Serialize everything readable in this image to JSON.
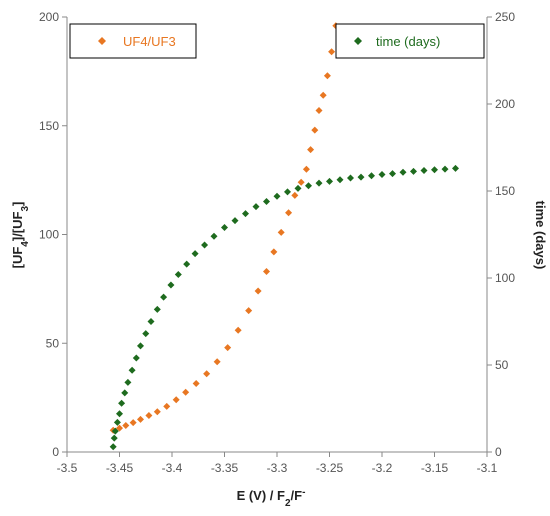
{
  "chart_data": {
    "type": "scatter",
    "title": "",
    "xlabel": "E (V) / F2/F-",
    "ylabel_left": "[UF4]/[UF3]",
    "ylabel_right": "time (days)",
    "xlim": [
      -3.5,
      -3.1
    ],
    "ylim_left": [
      0,
      200
    ],
    "ylim_right": [
      0,
      250
    ],
    "grid": false,
    "x_ticks": [
      "-3.5",
      "-3.45",
      "-3.4",
      "-3.35",
      "-3.3",
      "-3.25",
      "-3.2",
      "-3.15",
      "-3.1"
    ],
    "y_left_ticks": [
      "0",
      "50",
      "100",
      "150",
      "200"
    ],
    "y_right_ticks": [
      "0",
      "50",
      "100",
      "150",
      "200",
      "250"
    ],
    "series": [
      {
        "name": "UF4/UF3",
        "axis": "left",
        "color": "#E87722",
        "marker": "diamond",
        "legend_position": "top-left",
        "x": [
          -3.456,
          -3.45,
          -3.444,
          -3.437,
          -3.43,
          -3.422,
          -3.414,
          -3.405,
          -3.396,
          -3.387,
          -3.377,
          -3.367,
          -3.357,
          -3.347,
          -3.337,
          -3.327,
          -3.318,
          -3.31,
          -3.303,
          -3.296,
          -3.289,
          -3.283,
          -3.277,
          -3.272,
          -3.268,
          -3.264,
          -3.26,
          -3.256,
          -3.252,
          -3.248,
          -3.244
        ],
        "y": [
          10,
          11,
          12.2,
          13.5,
          15,
          16.8,
          18.5,
          21,
          24,
          27.5,
          31.5,
          36,
          41.5,
          48,
          56,
          65,
          74,
          83,
          92,
          101,
          110,
          118,
          124,
          130,
          139,
          148,
          157,
          164,
          173,
          184,
          196
        ]
      },
      {
        "name": "time (days)",
        "axis": "right",
        "color": "#1E6B1E",
        "marker": "diamond",
        "legend_position": "top-right",
        "x": [
          -3.456,
          -3.455,
          -3.454,
          -3.452,
          -3.45,
          -3.448,
          -3.445,
          -3.442,
          -3.438,
          -3.434,
          -3.43,
          -3.425,
          -3.42,
          -3.414,
          -3.408,
          -3.401,
          -3.394,
          -3.386,
          -3.378,
          -3.369,
          -3.36,
          -3.35,
          -3.34,
          -3.33,
          -3.32,
          -3.31,
          -3.3,
          -3.29,
          -3.28,
          -3.27,
          -3.26,
          -3.25,
          -3.24,
          -3.23,
          -3.22,
          -3.21,
          -3.2,
          -3.19,
          -3.18,
          -3.17,
          -3.16,
          -3.15,
          -3.14,
          -3.13
        ],
        "y": [
          3,
          8,
          12,
          17,
          22,
          28,
          34,
          40,
          47,
          54,
          61,
          68,
          75,
          82,
          89,
          96,
          102,
          108,
          114,
          119,
          124,
          129,
          133,
          137,
          141,
          144,
          147,
          149.5,
          151.5,
          153,
          154.5,
          155.5,
          156.5,
          157.5,
          158,
          158.8,
          159.5,
          160,
          160.8,
          161.3,
          161.8,
          162.2,
          162.6,
          163
        ]
      }
    ]
  }
}
